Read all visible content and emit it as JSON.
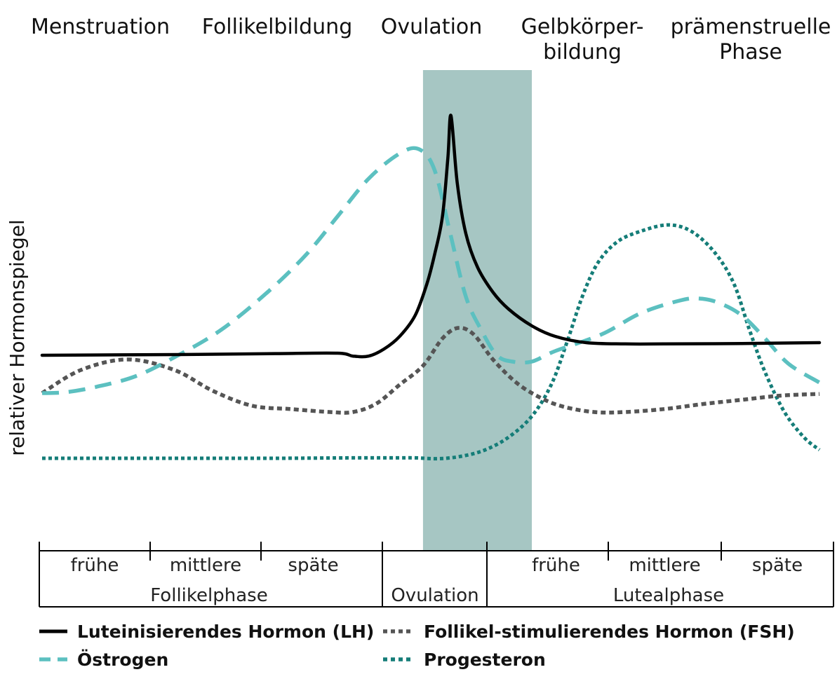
{
  "chart_data": {
    "type": "line",
    "title": "",
    "ylabel": "relativer Hormonspiegel",
    "xlabel": "",
    "grid": false,
    "legend_position": "bottom",
    "top_phases": [
      {
        "lines": [
          "Menstruation"
        ]
      },
      {
        "lines": [
          "Follikelbildung"
        ]
      },
      {
        "lines": [
          "Ovulation"
        ]
      },
      {
        "lines": [
          "Gelbkörper-",
          "bildung"
        ]
      },
      {
        "lines": [
          "prämenstruelle",
          "Phase"
        ]
      }
    ],
    "sub_phases": [
      "frühe",
      "mittlere",
      "späte",
      "frühe",
      "mittlere",
      "späte"
    ],
    "main_phases": [
      "Follikelphase",
      "Ovulation",
      "Lutealphase"
    ],
    "highlight_region": {
      "label": "Ovulation",
      "x_range": [
        49,
        63
      ],
      "color": "#a6c6c3"
    },
    "x_range": [
      0,
      100
    ],
    "y_range": [
      0,
      100
    ],
    "series": [
      {
        "name": "Luteinisierendes Hormon (LH)",
        "color": "#000000",
        "style": "solid",
        "points": [
          [
            0,
            44
          ],
          [
            10,
            44.1
          ],
          [
            20,
            44.2
          ],
          [
            30,
            44.4
          ],
          [
            38,
            44.5
          ],
          [
            40,
            43.8
          ],
          [
            42,
            43.8
          ],
          [
            44,
            45.5
          ],
          [
            46,
            48.5
          ],
          [
            48,
            53.5
          ],
          [
            49.5,
            61
          ],
          [
            50.5,
            68
          ],
          [
            51.5,
            77
          ],
          [
            52.2,
            91
          ],
          [
            52.6,
            101
          ],
          [
            53.4,
            85
          ],
          [
            54.5,
            73
          ],
          [
            56,
            65
          ],
          [
            58,
            59
          ],
          [
            60,
            55
          ],
          [
            63,
            51
          ],
          [
            66,
            48.5
          ],
          [
            70,
            47
          ],
          [
            75,
            46.7
          ],
          [
            80,
            46.7
          ],
          [
            90,
            46.8
          ],
          [
            100,
            47
          ]
        ]
      },
      {
        "name": "Östrogen",
        "color": "#5cc0c0",
        "style": "dashed",
        "points": [
          [
            0,
            35
          ],
          [
            3,
            35.2
          ],
          [
            7,
            36.5
          ],
          [
            12,
            39
          ],
          [
            17,
            43.5
          ],
          [
            23,
            50
          ],
          [
            29,
            59
          ],
          [
            34,
            68
          ],
          [
            38,
            77
          ],
          [
            42,
            86
          ],
          [
            46,
            92
          ],
          [
            48.5,
            93
          ],
          [
            50.5,
            88
          ],
          [
            52.5,
            73
          ],
          [
            54.5,
            58
          ],
          [
            56.5,
            50
          ],
          [
            58.5,
            44
          ],
          [
            60.5,
            42.5
          ],
          [
            63,
            42.5
          ],
          [
            66,
            45
          ],
          [
            72,
            49
          ],
          [
            77,
            54
          ],
          [
            82,
            57
          ],
          [
            84.5,
            57.5
          ],
          [
            87,
            56.5
          ],
          [
            90,
            53.5
          ],
          [
            93,
            48
          ],
          [
            96,
            42
          ],
          [
            100,
            37.5
          ]
        ]
      },
      {
        "name": "Follikel-stimulierendes Hormon (FSH)",
        "color": "#555555",
        "style": "dotted",
        "points": [
          [
            0,
            35
          ],
          [
            5,
            40.5
          ],
          [
            11,
            43
          ],
          [
            17,
            40.5
          ],
          [
            22,
            35.5
          ],
          [
            27,
            32
          ],
          [
            32,
            31.2
          ],
          [
            37,
            30.5
          ],
          [
            40,
            30.5
          ],
          [
            43,
            32.5
          ],
          [
            46,
            37
          ],
          [
            49,
            41.5
          ],
          [
            51.5,
            48
          ],
          [
            53.5,
            50.5
          ],
          [
            55.5,
            49
          ],
          [
            58,
            43
          ],
          [
            61,
            37.5
          ],
          [
            64,
            34
          ],
          [
            67,
            31.8
          ],
          [
            71,
            30.5
          ],
          [
            75,
            30.5
          ],
          [
            80,
            31.2
          ],
          [
            85,
            32.4
          ],
          [
            90,
            33.4
          ],
          [
            95,
            34.4
          ],
          [
            100,
            34.8
          ]
        ]
      },
      {
        "name": "Progesteron",
        "color": "#157d78",
        "style": "dense-dotted",
        "points": [
          [
            0,
            19.5
          ],
          [
            10,
            19.5
          ],
          [
            20,
            19.5
          ],
          [
            30,
            19.5
          ],
          [
            40,
            19.6
          ],
          [
            45,
            19.6
          ],
          [
            48,
            19.6
          ],
          [
            51,
            19.4
          ],
          [
            54,
            20
          ],
          [
            57,
            21.5
          ],
          [
            60,
            24.5
          ],
          [
            63,
            29.5
          ],
          [
            65.5,
            37
          ],
          [
            67.5,
            47
          ],
          [
            69.5,
            58
          ],
          [
            71.5,
            66
          ],
          [
            74,
            71
          ],
          [
            77,
            73.5
          ],
          [
            80.5,
            75
          ],
          [
            83.5,
            73.5
          ],
          [
            86.5,
            68.5
          ],
          [
            89,
            61
          ],
          [
            91,
            50
          ],
          [
            93,
            40
          ],
          [
            95.5,
            30.5
          ],
          [
            98,
            24.5
          ],
          [
            100,
            21.5
          ]
        ]
      }
    ]
  }
}
